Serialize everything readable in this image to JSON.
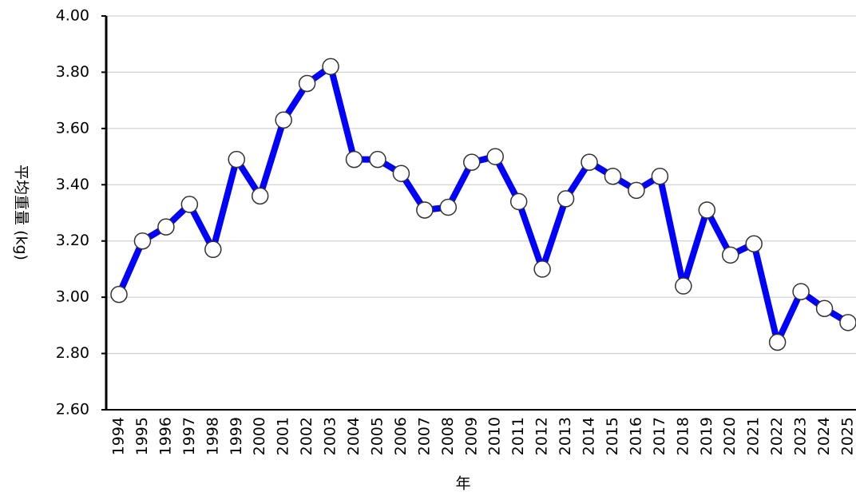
{
  "chart_data": {
    "type": "line",
    "ylabel": "平均重量 (kg)",
    "xlabel": "年",
    "categories": [
      "1994",
      "1995",
      "1996",
      "1997",
      "1998",
      "1999",
      "2000",
      "2001",
      "2002",
      "2003",
      "2004",
      "2005",
      "2006",
      "2007",
      "2008",
      "2009",
      "2010",
      "2011",
      "2012",
      "2013",
      "2014",
      "2015",
      "2016",
      "2017",
      "2018",
      "2019",
      "2020",
      "2021",
      "2022",
      "2023",
      "2024",
      "2025"
    ],
    "values": [
      3.01,
      3.2,
      3.25,
      3.33,
      3.17,
      3.49,
      3.36,
      3.63,
      3.76,
      3.82,
      3.49,
      3.49,
      3.44,
      3.31,
      3.32,
      3.48,
      3.5,
      3.34,
      3.1,
      3.35,
      3.48,
      3.43,
      3.38,
      3.43,
      3.04,
      3.31,
      3.15,
      3.19,
      2.84,
      3.02,
      2.96,
      2.91
    ],
    "color": "#0000ff",
    "ylim": [
      2.6,
      4.0
    ],
    "yticks": [
      {
        "value": 2.6,
        "label": "2.60"
      },
      {
        "value": 2.8,
        "label": "2.80"
      },
      {
        "value": 3.0,
        "label": "3.00"
      },
      {
        "value": 3.2,
        "label": "3.20"
      },
      {
        "value": 3.4,
        "label": "3.40"
      },
      {
        "value": 3.6,
        "label": "3.60"
      },
      {
        "value": 3.8,
        "label": "3.80"
      },
      {
        "value": 4.0,
        "label": "4.00"
      }
    ],
    "grid": true
  }
}
